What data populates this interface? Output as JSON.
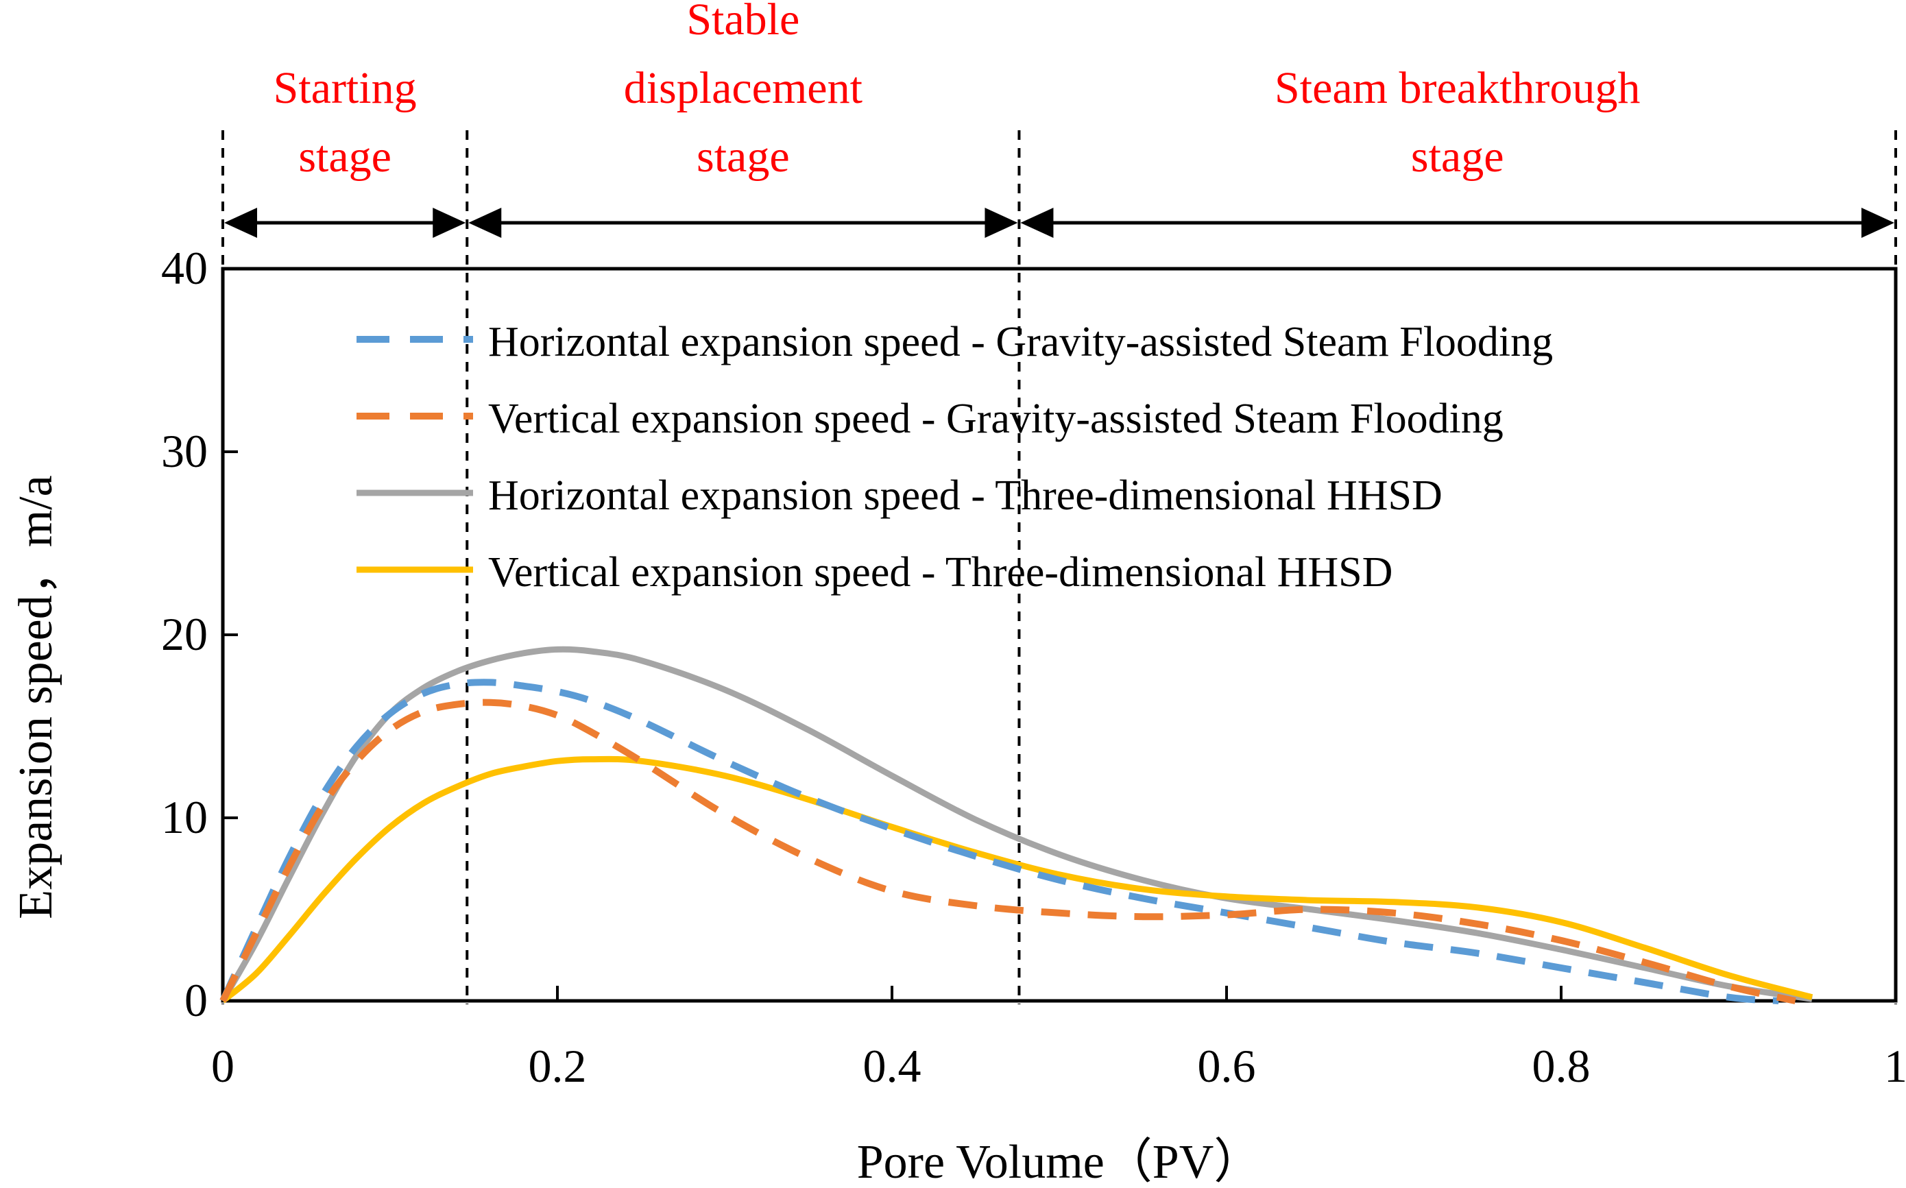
{
  "chart_data": {
    "type": "line",
    "title": "",
    "xlabel": "Pore Volume（PV）",
    "ylabel": "Expansion speed，m/a",
    "xlim": [
      0,
      1
    ],
    "ylim": [
      0,
      40
    ],
    "xticks": [
      0,
      0.2,
      0.4,
      0.6,
      0.8,
      1
    ],
    "xtick_labels": [
      "0",
      "0.2",
      "0.4",
      "0.6",
      "0.8",
      "1"
    ],
    "yticks": [
      0,
      10,
      20,
      30,
      40
    ],
    "ytick_labels": [
      "0",
      "10",
      "20",
      "30",
      "40"
    ],
    "grid": false,
    "legend_position": "top-right",
    "stage_boundaries": [
      0,
      0.146,
      0.476,
      1
    ],
    "stages": [
      {
        "lines": [
          "Starting",
          "stage"
        ],
        "from": 0,
        "to": 0.146
      },
      {
        "lines": [
          "Stable",
          "displacement",
          "stage"
        ],
        "from": 0.146,
        "to": 0.476
      },
      {
        "lines": [
          "Steam breakthrough",
          "stage"
        ],
        "from": 0.476,
        "to": 1
      }
    ],
    "series": [
      {
        "name": "Horizontal expansion speed - Gravity-assisted Steam Flooding",
        "color": "#5b9bd5",
        "dash": true,
        "x": [
          0,
          0.02,
          0.04,
          0.06,
          0.08,
          0.1,
          0.12,
          0.14,
          0.16,
          0.18,
          0.2,
          0.22,
          0.25,
          0.3,
          0.35,
          0.4,
          0.45,
          0.5,
          0.55,
          0.6,
          0.65,
          0.7,
          0.75,
          0.8,
          0.85,
          0.9,
          0.93
        ],
        "y": [
          0,
          4.0,
          7.9,
          11.3,
          13.9,
          15.7,
          16.8,
          17.3,
          17.4,
          17.2,
          16.9,
          16.4,
          15.3,
          13.1,
          11.1,
          9.4,
          7.9,
          6.6,
          5.6,
          4.8,
          4.0,
          3.2,
          2.6,
          1.8,
          1.0,
          0.2,
          0
        ]
      },
      {
        "name": "Vertical expansion speed - Gravity-assisted Steam Flooding",
        "color": "#ed7d31",
        "dash": true,
        "x": [
          0,
          0.02,
          0.04,
          0.06,
          0.08,
          0.1,
          0.12,
          0.14,
          0.16,
          0.18,
          0.2,
          0.22,
          0.25,
          0.3,
          0.35,
          0.4,
          0.45,
          0.5,
          0.55,
          0.6,
          0.65,
          0.7,
          0.75,
          0.8,
          0.85,
          0.9,
          0.94
        ],
        "y": [
          0,
          3.7,
          7.4,
          10.7,
          13.1,
          14.8,
          15.8,
          16.2,
          16.3,
          16.1,
          15.6,
          14.7,
          13.1,
          10.2,
          7.8,
          6.0,
          5.2,
          4.8,
          4.6,
          4.7,
          5.0,
          4.8,
          4.2,
          3.3,
          2.1,
          0.8,
          0
        ]
      },
      {
        "name": "Horizontal expansion speed - Three-dimensional HHSD",
        "color": "#a5a5a5",
        "dash": false,
        "x": [
          0,
          0.02,
          0.04,
          0.06,
          0.08,
          0.1,
          0.12,
          0.14,
          0.16,
          0.18,
          0.2,
          0.22,
          0.25,
          0.3,
          0.35,
          0.4,
          0.45,
          0.5,
          0.55,
          0.6,
          0.65,
          0.7,
          0.75,
          0.8,
          0.85,
          0.9,
          0.95
        ],
        "y": [
          0,
          3.2,
          6.8,
          10.3,
          13.4,
          15.7,
          17.1,
          18.0,
          18.6,
          19.0,
          19.2,
          19.1,
          18.6,
          17.0,
          14.8,
          12.3,
          9.9,
          8.0,
          6.6,
          5.6,
          5.0,
          4.4,
          3.7,
          2.8,
          1.8,
          0.8,
          0.1
        ]
      },
      {
        "name": "Vertical expansion speed - Three-dimensional HHSD",
        "color": "#ffc000",
        "dash": false,
        "x": [
          0,
          0.02,
          0.04,
          0.06,
          0.08,
          0.1,
          0.12,
          0.14,
          0.16,
          0.18,
          0.2,
          0.22,
          0.25,
          0.3,
          0.35,
          0.4,
          0.45,
          0.5,
          0.55,
          0.6,
          0.65,
          0.7,
          0.75,
          0.8,
          0.85,
          0.9,
          0.95
        ],
        "y": [
          0,
          1.5,
          3.6,
          5.8,
          7.8,
          9.5,
          10.8,
          11.7,
          12.4,
          12.8,
          13.1,
          13.2,
          13.1,
          12.3,
          11.0,
          9.5,
          8.1,
          6.9,
          6.1,
          5.7,
          5.5,
          5.4,
          5.1,
          4.3,
          2.9,
          1.4,
          0.2
        ]
      }
    ]
  }
}
